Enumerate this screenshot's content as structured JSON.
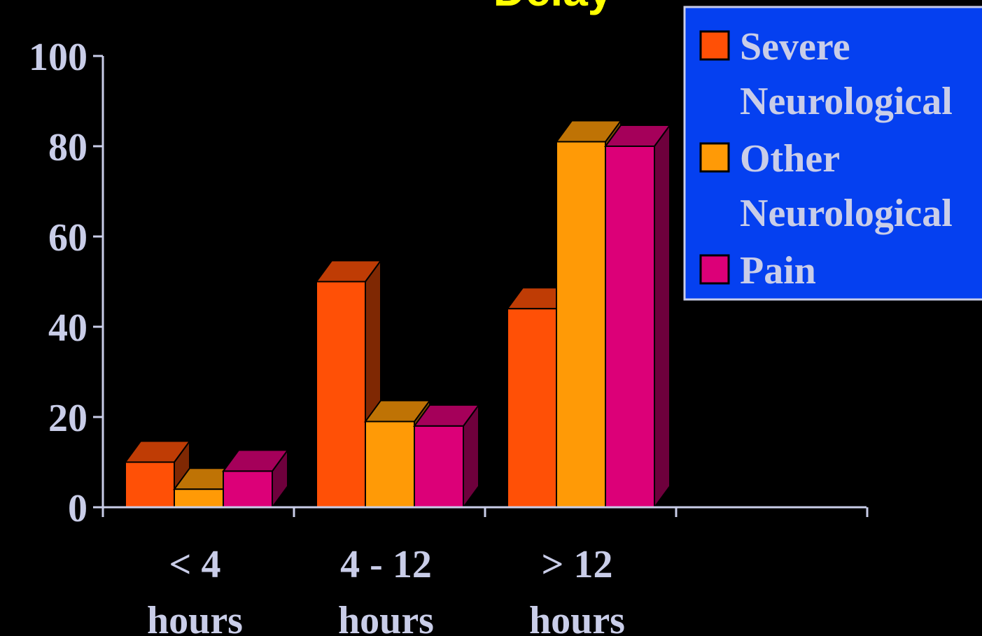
{
  "chart_data": {
    "type": "bar",
    "title": "Delay",
    "categories": [
      [
        "< 4",
        "hours"
      ],
      [
        "4 - 12",
        "hours"
      ],
      [
        "> 12",
        "hours"
      ]
    ],
    "series": [
      {
        "name": "Severe Neurological",
        "legend_lines": [
          "Severe",
          "Neurological"
        ],
        "values": [
          10,
          50,
          44
        ],
        "color": "#ff5006",
        "top_color": "#bf3c05",
        "side_color": "#7f2803"
      },
      {
        "name": "Other Neurological",
        "legend_lines": [
          "Other",
          "Neurological"
        ],
        "values": [
          4,
          19,
          81
        ],
        "color": "#ff9a06",
        "top_color": "#bf7305",
        "side_color": "#7f4d03"
      },
      {
        "name": "Pain",
        "legend_lines": [
          "Pain"
        ],
        "values": [
          8,
          18,
          80
        ],
        "color": "#dc0078",
        "top_color": "#a5005a",
        "side_color": "#6e003c"
      }
    ],
    "yticks": [
      "0",
      "20",
      "40",
      "60",
      "80",
      "100"
    ],
    "ylim": [
      0,
      100
    ],
    "xlabel": "",
    "ylabel": "",
    "grid": false,
    "legend_position": "top-right",
    "colors": {
      "background": "#000000",
      "axis": "#c9cde8",
      "text": "#c9cde8",
      "title": "#ffff00",
      "legend_bg": "#0540f0",
      "legend_border": "#c9cde8"
    }
  }
}
